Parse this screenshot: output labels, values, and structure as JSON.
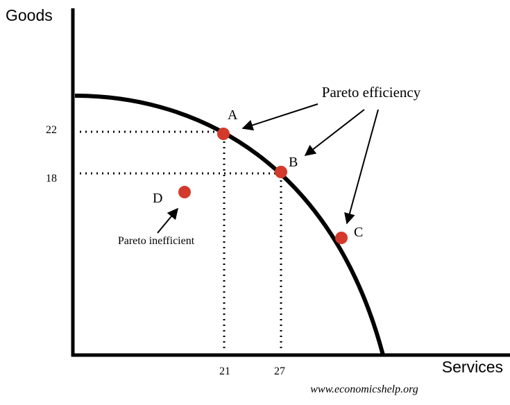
{
  "axes": {
    "y_label": "Goods",
    "x_label": "Services"
  },
  "ticks": {
    "y": [
      22,
      18
    ],
    "x": [
      21,
      27
    ]
  },
  "points": [
    {
      "label": "A"
    },
    {
      "label": "B"
    },
    {
      "label": "C"
    },
    {
      "label": "D"
    }
  ],
  "annotations": {
    "efficient": "Pareto efficiency",
    "inefficient": "Pareto inefficient"
  },
  "credit": "www.economicshelp.org"
}
